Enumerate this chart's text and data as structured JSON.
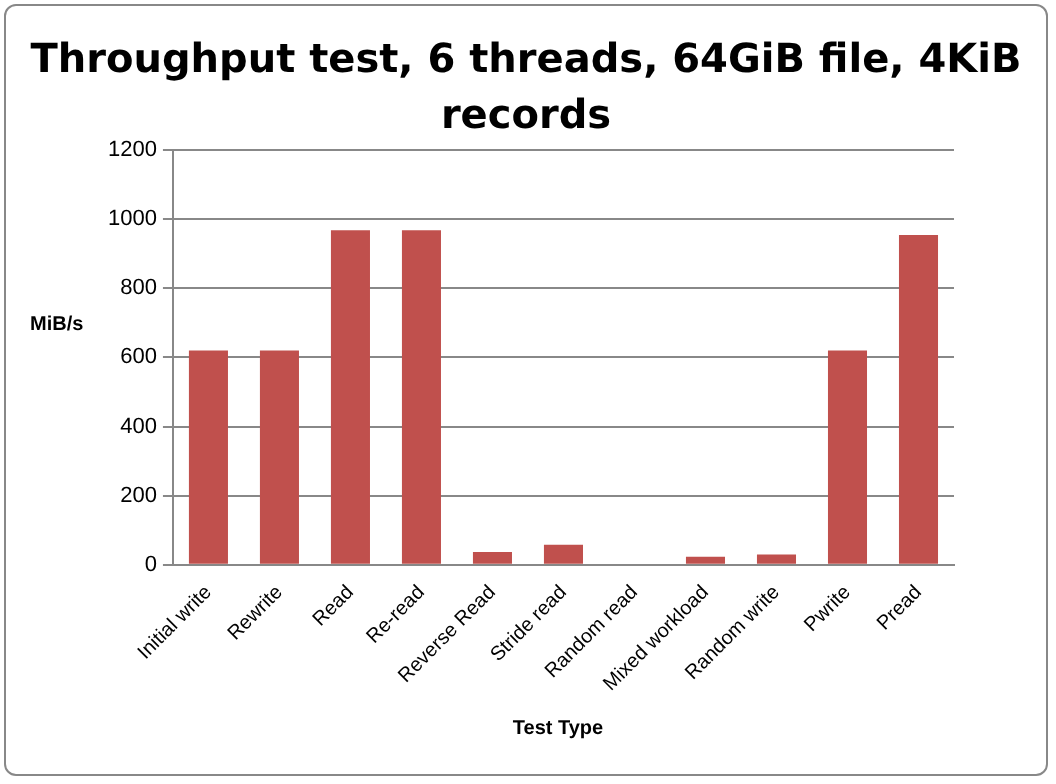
{
  "chart_data": {
    "type": "bar",
    "title": "Throughput test, 6 threads, 64GiB file, 4KiB records",
    "xlabel": "Test Type",
    "ylabel": "MiB/s",
    "categories": [
      "Initial write",
      "Rewrite",
      "Read",
      "Re-read",
      "Reverse Read",
      "Stride read",
      "Random read",
      "Mixed workload",
      "Random write",
      "Pwrite",
      "Pread"
    ],
    "values": [
      620,
      620,
      968,
      968,
      37,
      58,
      0,
      23,
      30,
      620,
      954
    ],
    "color": "#c0504d",
    "ylim": [
      0,
      1200
    ],
    "yticks": [
      0,
      200,
      400,
      600,
      800,
      1000,
      1200
    ],
    "grid": "y",
    "legend": false
  }
}
